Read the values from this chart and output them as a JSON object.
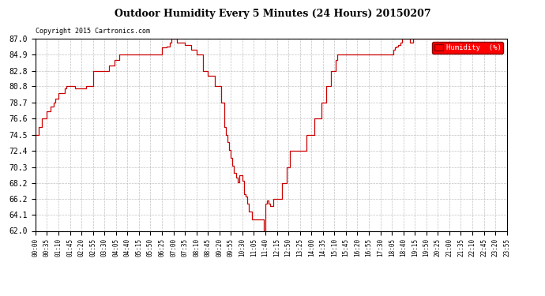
{
  "title": "Outdoor Humidity Every 5 Minutes (24 Hours) 20150207",
  "copyright": "Copyright 2015 Cartronics.com",
  "legend_label": "Humidity  (%)",
  "line_color": "#cc0000",
  "background_color": "#ffffff",
  "plot_bg_color": "#ffffff",
  "grid_color": "#bbbbbb",
  "ylim": [
    62.0,
    87.0
  ],
  "yticks": [
    62.0,
    64.1,
    66.2,
    68.2,
    70.3,
    72.4,
    74.5,
    76.6,
    78.7,
    80.8,
    82.8,
    84.9,
    87.0
  ],
  "humidity_data": [
    74.5,
    74.5,
    75.5,
    75.5,
    76.6,
    76.6,
    76.6,
    77.5,
    77.5,
    78.2,
    78.2,
    78.7,
    79.2,
    79.2,
    79.9,
    79.9,
    79.9,
    79.9,
    80.5,
    80.8,
    80.8,
    80.8,
    80.8,
    80.8,
    80.5,
    80.5,
    80.5,
    80.5,
    80.5,
    80.5,
    80.5,
    80.8,
    80.8,
    80.8,
    80.8,
    82.8,
    82.8,
    82.8,
    82.8,
    82.8,
    82.8,
    82.8,
    82.8,
    82.8,
    82.8,
    83.5,
    83.5,
    83.5,
    84.2,
    84.2,
    84.2,
    84.9,
    84.9,
    84.9,
    84.9,
    84.9,
    84.9,
    84.9,
    84.9,
    84.9,
    84.9,
    84.9,
    84.9,
    84.9,
    84.9,
    84.9,
    84.9,
    84.9,
    84.9,
    84.9,
    84.9,
    84.9,
    84.9,
    84.9,
    84.9,
    84.9,
    84.9,
    85.8,
    85.8,
    85.8,
    86.0,
    86.0,
    86.5,
    87.0,
    87.0,
    87.0,
    86.5,
    86.5,
    86.5,
    86.5,
    86.5,
    86.2,
    86.2,
    86.2,
    86.2,
    85.5,
    85.5,
    85.5,
    84.9,
    84.9,
    84.9,
    84.9,
    82.8,
    82.8,
    82.8,
    82.2,
    82.2,
    82.2,
    82.2,
    80.8,
    80.8,
    80.8,
    80.8,
    78.7,
    78.7,
    75.5,
    74.5,
    73.5,
    72.5,
    71.5,
    70.5,
    69.5,
    68.9,
    68.3,
    69.2,
    69.2,
    68.5,
    66.8,
    66.5,
    65.5,
    64.5,
    64.5,
    63.5,
    63.5,
    63.5,
    63.5,
    63.5,
    63.5,
    63.5,
    62.0,
    65.5,
    66.0,
    65.5,
    65.2,
    65.2,
    66.2,
    66.2,
    66.2,
    66.2,
    66.2,
    68.2,
    68.2,
    68.2,
    70.3,
    70.3,
    72.4,
    72.4,
    72.4,
    72.4,
    72.4,
    72.4,
    72.4,
    72.4,
    72.4,
    72.4,
    74.5,
    74.5,
    74.5,
    74.5,
    74.5,
    76.6,
    76.6,
    76.6,
    76.6,
    78.7,
    78.7,
    78.7,
    80.8,
    80.8,
    80.8,
    82.8,
    82.8,
    82.8,
    84.2,
    84.9,
    84.9,
    84.9,
    84.9,
    84.9,
    84.9,
    84.9,
    84.9,
    84.9,
    84.9,
    84.9,
    84.9,
    84.9,
    84.9,
    84.9,
    84.9,
    84.9,
    84.9,
    84.9,
    84.9,
    84.9,
    84.9,
    84.9,
    84.9,
    84.9,
    84.9,
    84.9,
    84.9,
    84.9,
    84.9,
    84.9,
    84.9,
    84.9,
    84.9,
    85.5,
    85.8,
    86.0,
    86.2,
    86.5,
    87.0,
    87.0,
    87.0,
    87.0,
    87.0,
    86.5,
    86.5,
    87.0,
    87.0,
    87.0,
    87.0,
    87.0,
    87.0,
    87.0,
    87.0,
    87.0,
    87.0,
    87.0,
    87.0,
    87.0,
    87.0,
    87.0,
    87.0,
    87.0,
    87.0,
    87.0,
    87.0,
    87.0,
    87.0,
    87.0,
    87.0,
    87.0,
    87.0,
    87.0,
    87.0,
    87.0,
    87.0,
    87.0,
    87.0,
    87.0,
    87.0,
    87.0,
    87.0,
    87.0,
    87.0,
    87.0,
    87.0,
    87.0,
    87.0,
    87.0,
    87.0,
    87.0,
    87.0,
    87.0,
    87.0,
    87.0,
    87.0,
    87.0,
    87.0,
    87.0,
    87.0,
    87.0,
    87.0,
    87.0,
    87.0
  ],
  "x_tick_labels": [
    "00:00",
    "00:35",
    "01:10",
    "01:45",
    "02:20",
    "02:55",
    "03:30",
    "04:05",
    "04:40",
    "05:15",
    "05:50",
    "06:25",
    "07:00",
    "07:35",
    "08:10",
    "08:45",
    "09:20",
    "09:55",
    "10:30",
    "11:05",
    "11:40",
    "12:15",
    "12:50",
    "13:25",
    "14:00",
    "14:35",
    "15:10",
    "15:45",
    "16:20",
    "16:55",
    "17:30",
    "18:05",
    "18:40",
    "19:15",
    "19:50",
    "20:25",
    "21:00",
    "21:35",
    "22:10",
    "22:45",
    "23:20",
    "23:55"
  ]
}
